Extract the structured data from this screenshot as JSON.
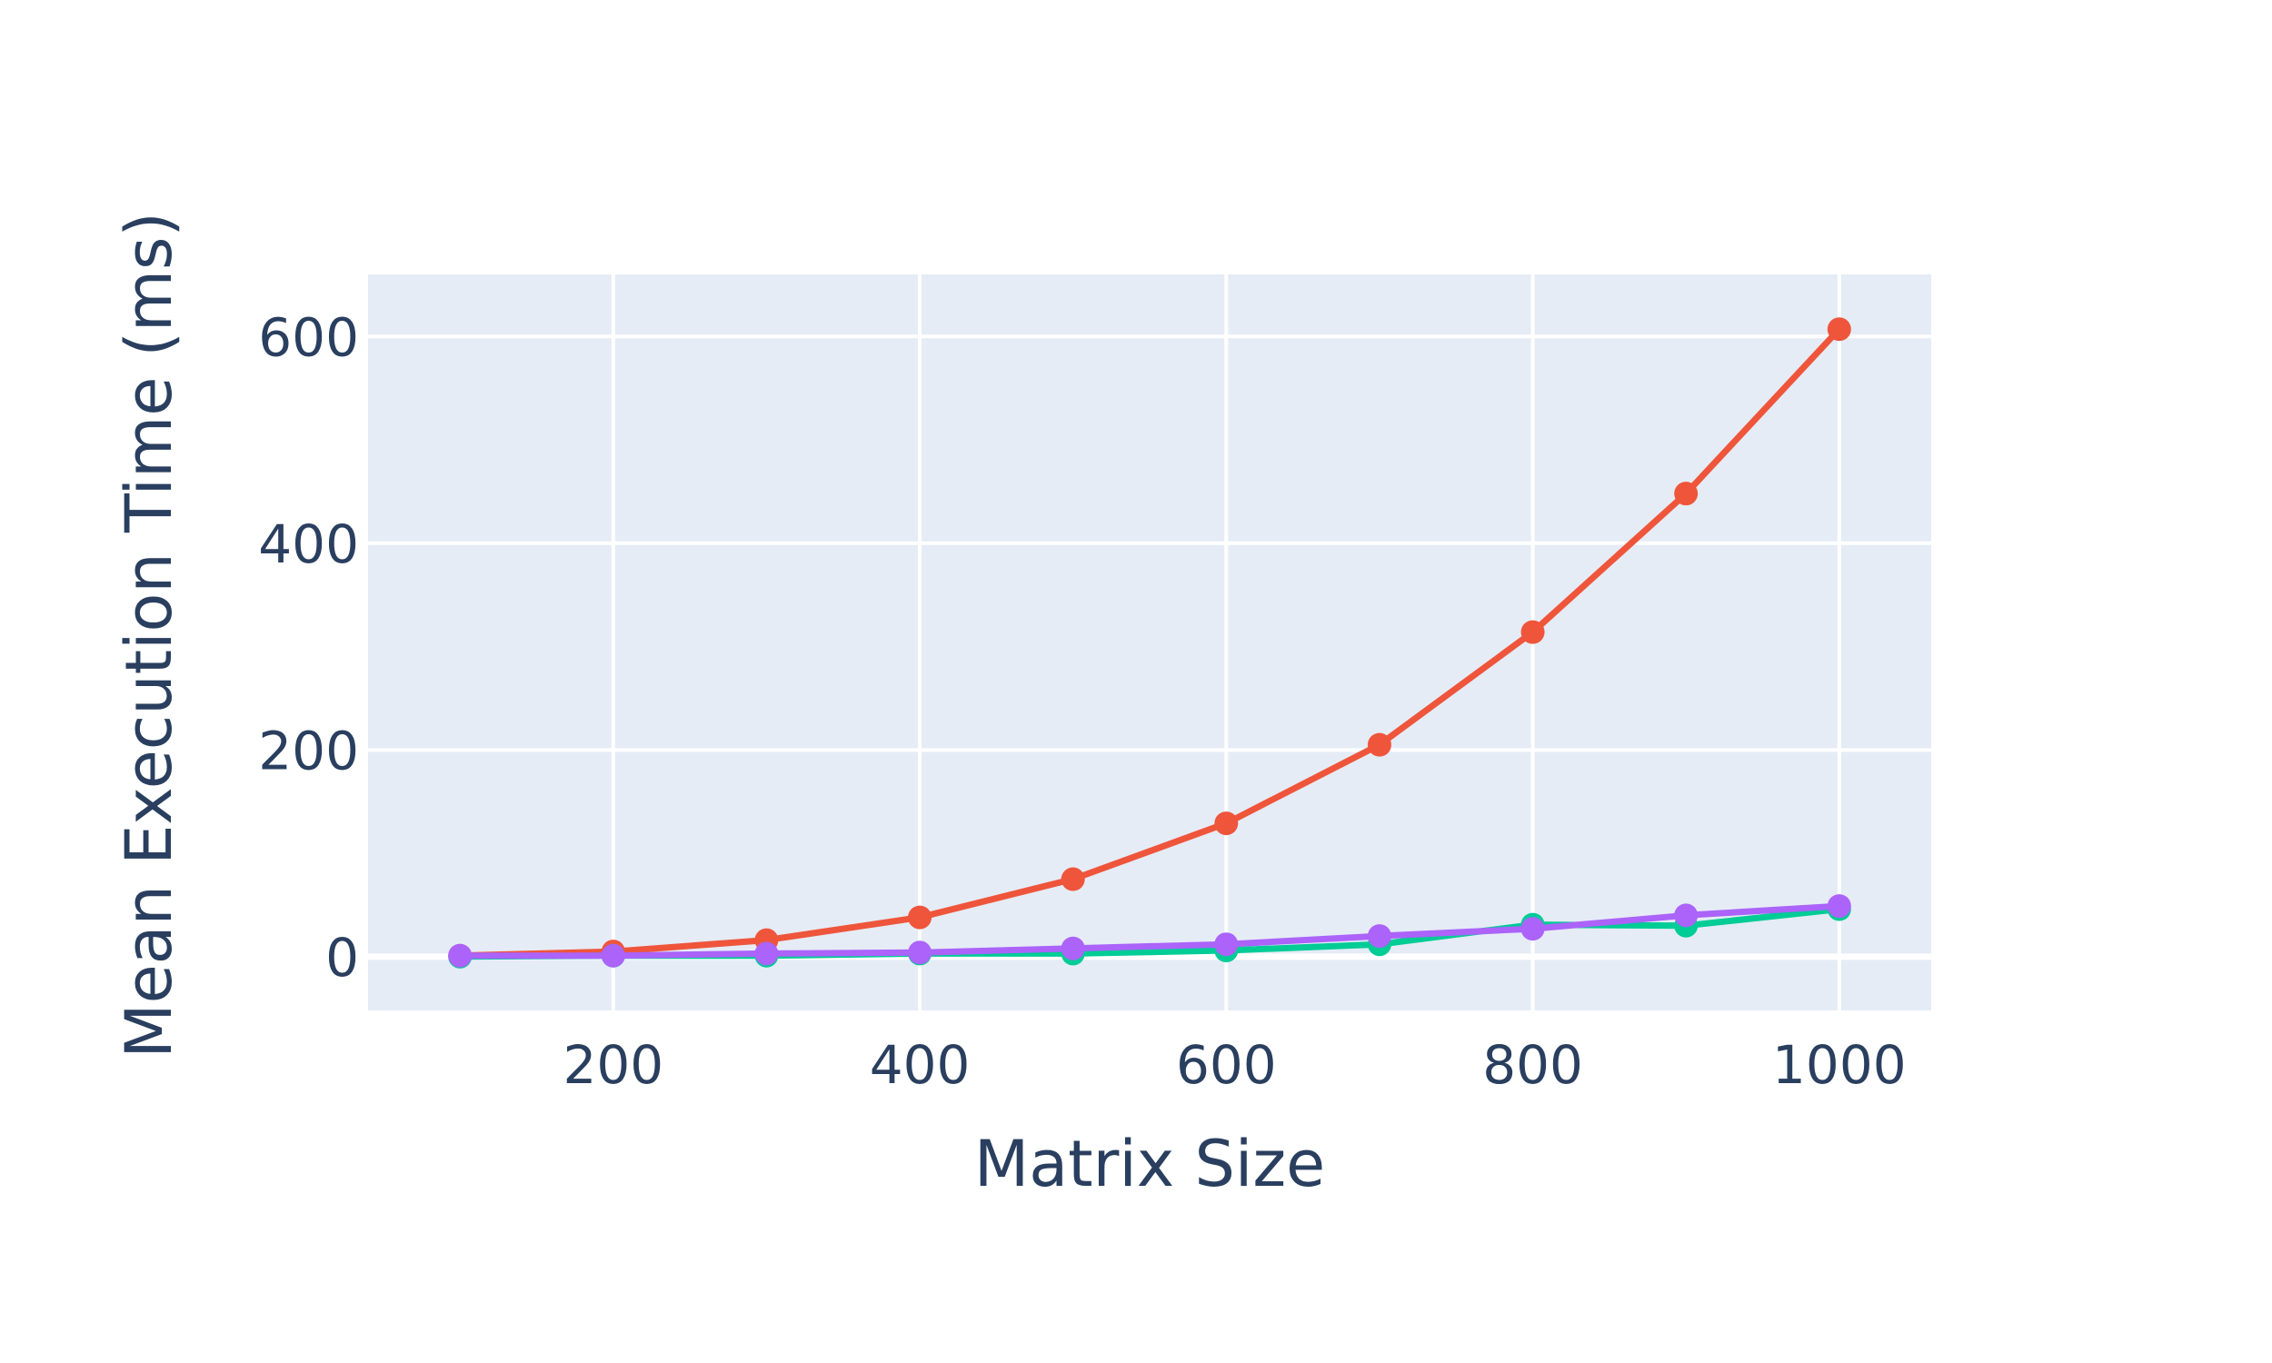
{
  "chart_data": {
    "type": "line",
    "title": "",
    "xlabel": "Matrix Size",
    "ylabel": "Mean Execution Time (ms)",
    "xlim": [
      40,
      1060
    ],
    "ylim": [
      -52,
      660
    ],
    "x_ticks": [
      200,
      400,
      600,
      800,
      1000
    ],
    "y_ticks": [
      0,
      200,
      400,
      600
    ],
    "grid": true,
    "legend": "none",
    "colors": {
      "plot_background": "#e5ecf6",
      "grid": "#ffffff",
      "text": "#2a3f5f"
    },
    "x": [
      100,
      200,
      300,
      400,
      500,
      600,
      700,
      800,
      900,
      1000
    ],
    "series": [
      {
        "color": "#ef553b",
        "values": [
          1,
          5,
          16,
          38,
          75,
          129,
          205,
          314,
          448,
          607
        ]
      },
      {
        "color": "#00cc96",
        "values": [
          0,
          1,
          1,
          3,
          3,
          6,
          12,
          31,
          30,
          46
        ]
      },
      {
        "color": "#ab63fa",
        "values": [
          1,
          1,
          3,
          4,
          8,
          12,
          20,
          27,
          40,
          49
        ]
      }
    ]
  }
}
